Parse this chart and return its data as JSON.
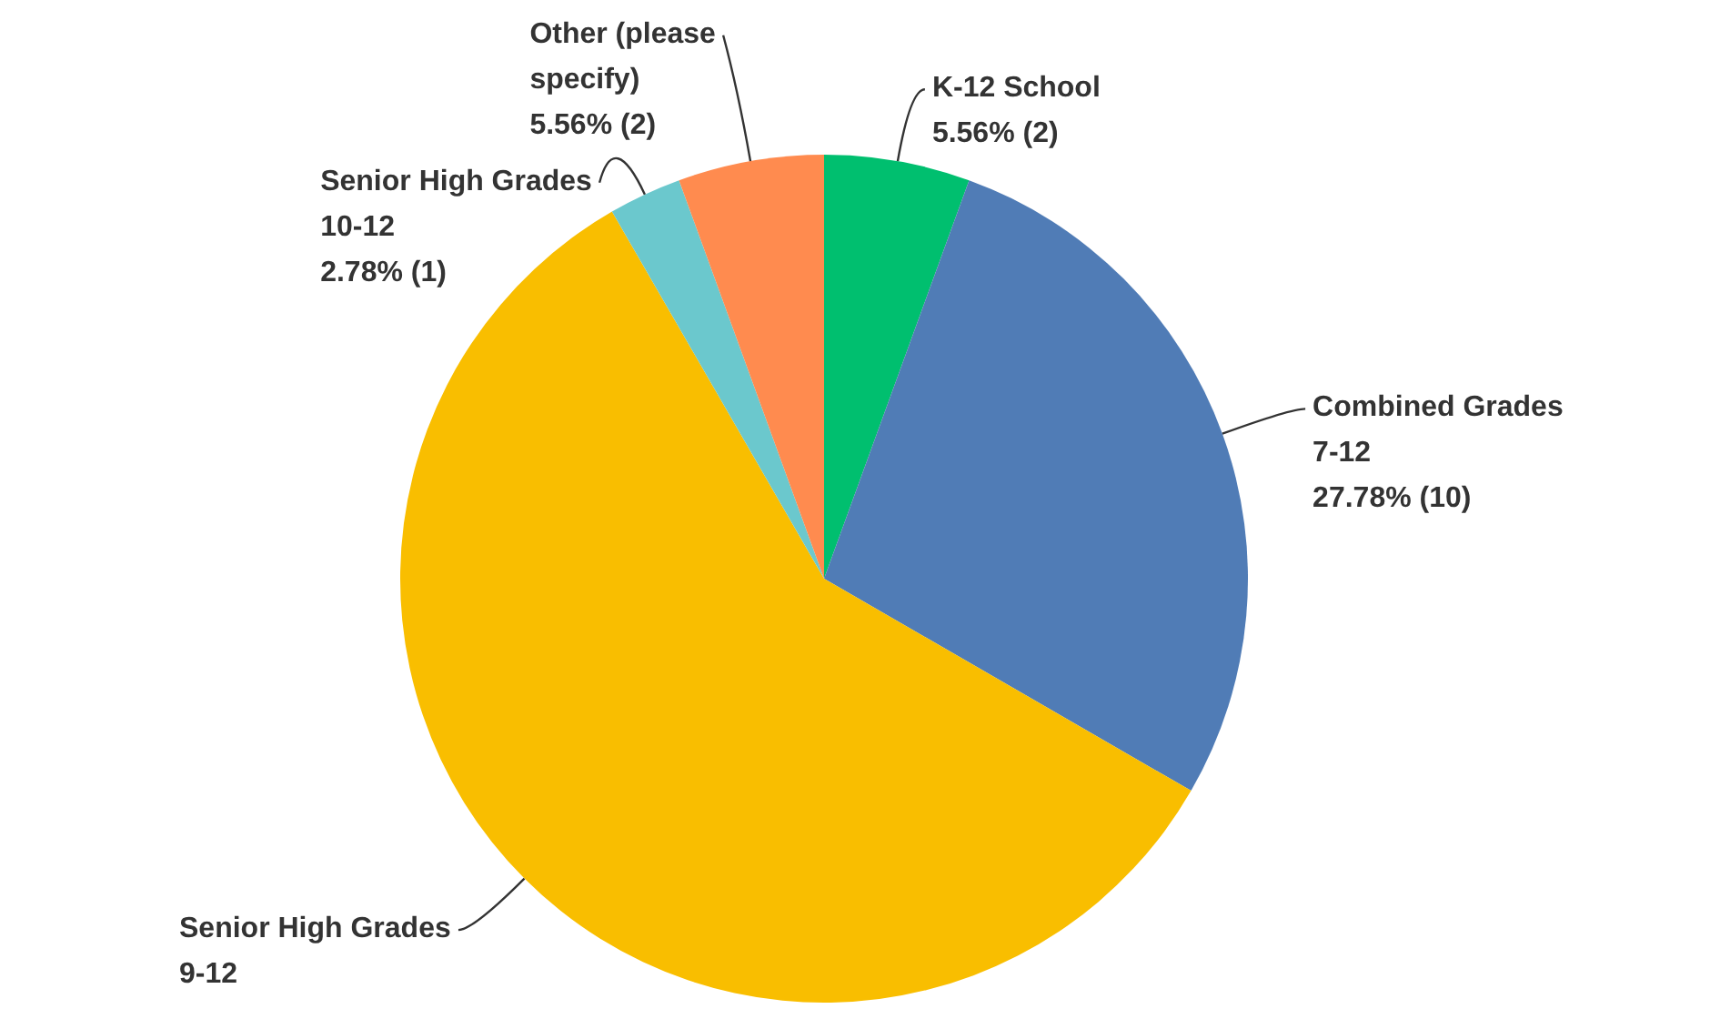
{
  "chart_data": {
    "type": "pie",
    "categories": [
      "K-12 School",
      "Combined Grades 7-12",
      "Senior High Grades 9-12",
      "Senior High Grades 10-12",
      "Other (please specify)"
    ],
    "values": [
      5.56,
      27.78,
      58.33,
      2.78,
      5.56
    ],
    "colors": [
      "#00bf6f",
      "#507cb6",
      "#f9be00",
      "#6bc8cd",
      "#ff8b4f"
    ],
    "value_labels": [
      "5.56% (2)",
      "27.78% (10)",
      null,
      "2.78% (1)",
      "5.56% (2)"
    ]
  }
}
